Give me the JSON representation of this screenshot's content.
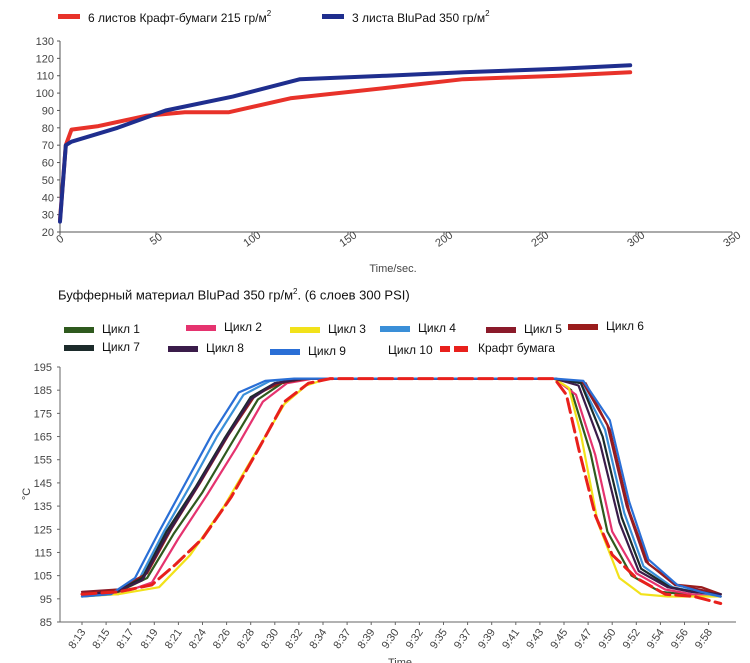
{
  "chart_data": [
    {
      "type": "line",
      "title": "",
      "xlabel": "Time/sec.",
      "ylabel": "",
      "xlim": [
        0,
        350
      ],
      "ylim": [
        20,
        130
      ],
      "x_ticks": [
        0,
        50,
        100,
        150,
        200,
        250,
        300,
        350
      ],
      "y_ticks": [
        20,
        30,
        40,
        50,
        60,
        70,
        80,
        90,
        100,
        110,
        120,
        130
      ],
      "grid": false,
      "legend_position": "top",
      "legend_sup": "2",
      "series": [
        {
          "name": "6 листов Крафт-бумаги 215 гр/м",
          "color": "#e8322a",
          "points": [
            [
              0,
              27
            ],
            [
              3,
              70
            ],
            [
              6,
              79
            ],
            [
              20,
              81
            ],
            [
              45,
              87
            ],
            [
              65,
              89
            ],
            [
              88,
              89
            ],
            [
              120,
              97
            ],
            [
              170,
              103
            ],
            [
              210,
              108
            ],
            [
              260,
              110
            ],
            [
              297,
              112
            ]
          ]
        },
        {
          "name": "3 листа BluPad 350 гр/м",
          "color": "#1f2e8e",
          "points": [
            [
              0,
              26
            ],
            [
              3,
              70
            ],
            [
              6,
              72
            ],
            [
              30,
              80
            ],
            [
              55,
              90
            ],
            [
              90,
              98
            ],
            [
              125,
              108
            ],
            [
              170,
              110
            ],
            [
              210,
              112
            ],
            [
              260,
              114
            ],
            [
              297,
              116
            ]
          ]
        }
      ]
    },
    {
      "type": "line",
      "title": "Буфферный материал BluPad 350 гр/м",
      "title_sup": "2",
      "title_suffix": ". (6 слоев 300 PSI)",
      "xlabel": "Time",
      "ylabel": "°C",
      "ylim": [
        85,
        195
      ],
      "y_ticks": [
        85,
        95,
        105,
        115,
        125,
        135,
        145,
        155,
        165,
        175,
        185,
        195
      ],
      "categories": [
        "8:13",
        "8:15",
        "8:17",
        "8:19",
        "8:21",
        "8:24",
        "8:26",
        "8:28",
        "8:30",
        "8:32",
        "8:34",
        "8:37",
        "8:39",
        "9:30",
        "9:32",
        "9:35",
        "9:37",
        "9:39",
        "9:41",
        "9:43",
        "9:45",
        "9:47",
        "9:50",
        "9:52",
        "9:54",
        "9:56",
        "9:58"
      ],
      "grid": false,
      "legend_position": "top",
      "series": [
        {
          "name": "Цикл 1",
          "color": "#2f5a1e",
          "points": [
            [
              0,
              97
            ],
            [
              1.5,
              98
            ],
            [
              2.7,
              104
            ],
            [
              3.8,
              123
            ],
            [
              5,
              141
            ],
            [
              6.2,
              162
            ],
            [
              7.3,
              181
            ],
            [
              8.3,
              188
            ],
            [
              9.5,
              190
            ],
            [
              19.6,
              190
            ],
            [
              20.3,
              185
            ],
            [
              21.1,
              158
            ],
            [
              21.8,
              124
            ],
            [
              22.8,
              105
            ],
            [
              24,
              98
            ],
            [
              25,
              97
            ],
            [
              26.5,
              96
            ]
          ]
        },
        {
          "name": "Цикл 2",
          "color": "#e5336f",
          "points": [
            [
              0,
              97
            ],
            [
              1.5,
              97
            ],
            [
              2.9,
              102
            ],
            [
              4,
              121
            ],
            [
              5.2,
              140
            ],
            [
              6.4,
              160
            ],
            [
              7.5,
              180
            ],
            [
              8.5,
              188
            ],
            [
              9.6,
              190
            ],
            [
              19.6,
              190
            ],
            [
              20.5,
              183
            ],
            [
              21.3,
              157
            ],
            [
              22,
              124
            ],
            [
              23,
              106
            ],
            [
              24.2,
              99
            ],
            [
              25.3,
              97
            ],
            [
              26.5,
              96
            ]
          ]
        },
        {
          "name": "Цикл 3",
          "color": "#f2e21a",
          "points": [
            [
              0,
              96
            ],
            [
              1.5,
              97
            ],
            [
              3.2,
              100
            ],
            [
              4.5,
              114
            ],
            [
              5.9,
              135
            ],
            [
              7.2,
              158
            ],
            [
              8.4,
              179
            ],
            [
              9.3,
              187
            ],
            [
              10.2,
              190
            ],
            [
              19.6,
              190
            ],
            [
              20.2,
              186
            ],
            [
              20.7,
              166
            ],
            [
              21.4,
              128
            ],
            [
              22.3,
              104
            ],
            [
              23.2,
              97
            ],
            [
              24.3,
              96
            ],
            [
              26.5,
              96
            ]
          ]
        },
        {
          "name": "Цикл 4",
          "color": "#3a8fd8",
          "points": [
            [
              0,
              96
            ],
            [
              1.2,
              97
            ],
            [
              2.4,
              104
            ],
            [
              3.4,
              124
            ],
            [
              4.5,
              144
            ],
            [
              5.6,
              165
            ],
            [
              6.7,
              183
            ],
            [
              7.8,
              189
            ],
            [
              9,
              190
            ],
            [
              19.6,
              190
            ],
            [
              20.7,
              188
            ],
            [
              21.7,
              168
            ],
            [
              22.5,
              132
            ],
            [
              23.3,
              109
            ],
            [
              24.5,
              100
            ],
            [
              25.5,
              98
            ],
            [
              26.5,
              96
            ]
          ]
        },
        {
          "name": "Цикл 5",
          "color": "#8b1a2a",
          "points": [
            [
              0,
              98
            ],
            [
              1.5,
              99
            ],
            [
              2.6,
              105
            ],
            [
              3.6,
              124
            ],
            [
              4.8,
              144
            ],
            [
              6,
              165
            ],
            [
              7.1,
              182
            ],
            [
              8.1,
              188
            ],
            [
              9.3,
              190
            ],
            [
              19.6,
              190
            ],
            [
              20.8,
              188
            ],
            [
              21.8,
              170
            ],
            [
              22.6,
              135
            ],
            [
              23.4,
              111
            ],
            [
              24.6,
              101
            ],
            [
              25.6,
              99
            ],
            [
              26.5,
              97
            ]
          ]
        },
        {
          "name": "Цикл 6",
          "color": "#9a1c1c",
          "points": [
            [
              0,
              97
            ],
            [
              1.5,
              99
            ],
            [
              2.7,
              106
            ],
            [
              3.7,
              125
            ],
            [
              4.9,
              145
            ],
            [
              6.1,
              166
            ],
            [
              7.2,
              183
            ],
            [
              8.2,
              188
            ],
            [
              9.4,
              190
            ],
            [
              19.6,
              190
            ],
            [
              20.9,
              188
            ],
            [
              21.9,
              168
            ],
            [
              22.7,
              133
            ],
            [
              23.5,
              110
            ],
            [
              24.7,
              101
            ],
            [
              25.7,
              100
            ],
            [
              26.5,
              97
            ]
          ]
        },
        {
          "name": "Цикл 7",
          "color": "#1c2b2b",
          "points": [
            [
              0,
              97
            ],
            [
              1.4,
              98
            ],
            [
              2.5,
              104
            ],
            [
              3.5,
              124
            ],
            [
              4.7,
              143
            ],
            [
              5.9,
              164
            ],
            [
              7,
              182
            ],
            [
              8,
              188
            ],
            [
              9.2,
              190
            ],
            [
              19.6,
              190
            ],
            [
              20.7,
              188
            ],
            [
              21.6,
              165
            ],
            [
              22.4,
              130
            ],
            [
              23.2,
              108
            ],
            [
              24.4,
              100
            ],
            [
              25.4,
              98
            ],
            [
              26.5,
              97
            ]
          ]
        },
        {
          "name": "Цикл 8",
          "color": "#3a1c4a",
          "points": [
            [
              0,
              97
            ],
            [
              1.4,
              98
            ],
            [
              2.5,
              103
            ],
            [
              3.5,
              122
            ],
            [
              4.7,
              142
            ],
            [
              5.9,
              163
            ],
            [
              7,
              181
            ],
            [
              8,
              188
            ],
            [
              9.2,
              190
            ],
            [
              19.6,
              190
            ],
            [
              20.6,
              187
            ],
            [
              21.5,
              162
            ],
            [
              22.3,
              128
            ],
            [
              23.1,
              107
            ],
            [
              24.3,
              100
            ],
            [
              25.3,
              98
            ],
            [
              26.5,
              97
            ]
          ]
        },
        {
          "name": "Цикл 9",
          "color": "#2a6fd6",
          "points": [
            [
              0,
              96
            ],
            [
              1.2,
              97
            ],
            [
              2.2,
              104
            ],
            [
              3.2,
              124
            ],
            [
              4.3,
              145
            ],
            [
              5.4,
              166
            ],
            [
              6.5,
              184
            ],
            [
              7.6,
              189
            ],
            [
              8.8,
              190
            ],
            [
              19.6,
              190
            ],
            [
              20.8,
              189
            ],
            [
              21.9,
              172
            ],
            [
              22.7,
              137
            ],
            [
              23.5,
              112
            ],
            [
              24.7,
              101
            ],
            [
              25.7,
              98
            ],
            [
              26.5,
              96
            ]
          ]
        },
        {
          "name": "Цикл 10",
          "color": "#ffffff",
          "points": []
        },
        {
          "name": "Крафт бумага",
          "color": "#e8201c",
          "dashed": true,
          "points": [
            [
              0,
              97
            ],
            [
              1.5,
              98
            ],
            [
              2.9,
              101
            ],
            [
              3.9,
              110
            ],
            [
              5,
              121
            ],
            [
              6.2,
              139
            ],
            [
              7.4,
              161
            ],
            [
              8.4,
              180
            ],
            [
              9.4,
              188
            ],
            [
              10.3,
              190
            ],
            [
              19.6,
              190
            ],
            [
              20.1,
              183
            ],
            [
              20.6,
              160
            ],
            [
              21.3,
              131
            ],
            [
              22,
              114
            ],
            [
              23,
              104
            ],
            [
              24.2,
              97
            ],
            [
              25.4,
              96
            ],
            [
              26.5,
              93
            ]
          ]
        }
      ]
    }
  ]
}
